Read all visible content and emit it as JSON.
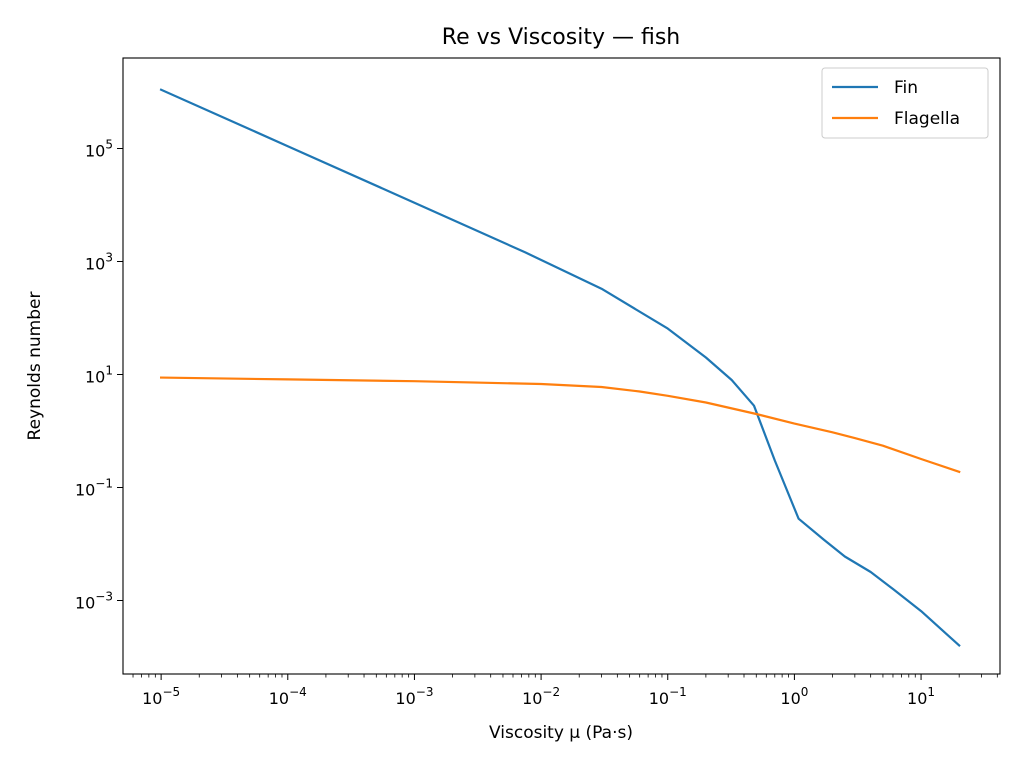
{
  "chart_data": {
    "type": "line",
    "title": "Re vs Viscosity — fish",
    "xlabel": "Viscosity μ (Pa·s)",
    "ylabel": "Reynolds number",
    "xscale": "log",
    "yscale": "log",
    "xlim": [
      5e-06,
      42
    ],
    "ylim": [
      5e-05,
      4000000
    ],
    "x_ticks": [
      {
        "value": 1e-05,
        "base": "10",
        "exp": "−5"
      },
      {
        "value": 0.0001,
        "base": "10",
        "exp": "−4"
      },
      {
        "value": 0.001,
        "base": "10",
        "exp": "−3"
      },
      {
        "value": 0.01,
        "base": "10",
        "exp": "−2"
      },
      {
        "value": 0.1,
        "base": "10",
        "exp": "−1"
      },
      {
        "value": 1,
        "base": "10",
        "exp": "0"
      },
      {
        "value": 10,
        "base": "10",
        "exp": "1"
      }
    ],
    "y_ticks": [
      {
        "value": 0.001,
        "base": "10",
        "exp": "−3"
      },
      {
        "value": 0.1,
        "base": "10",
        "exp": "−1"
      },
      {
        "value": 10,
        "base": "10",
        "exp": "1"
      },
      {
        "value": 1000,
        "base": "10",
        "exp": "3"
      },
      {
        "value": 100000,
        "base": "10",
        "exp": "5"
      }
    ],
    "legend_position": "top-right",
    "grid": false,
    "series": [
      {
        "name": "Fin",
        "color": "#1f77b4",
        "points": [
          [
            1e-05,
            1100000
          ],
          [
            0.0001,
            110000
          ],
          [
            0.001,
            11000
          ],
          [
            0.0075,
            1450
          ],
          [
            0.03,
            330
          ],
          [
            0.1,
            65
          ],
          [
            0.2,
            20
          ],
          [
            0.32,
            8
          ],
          [
            0.48,
            2.8
          ],
          [
            0.7,
            0.3
          ],
          [
            1.08,
            0.028
          ],
          [
            1.7,
            0.012
          ],
          [
            2.5,
            0.006
          ],
          [
            4,
            0.0032
          ],
          [
            6,
            0.0016
          ],
          [
            10,
            0.00065
          ],
          [
            20,
            0.00016
          ]
        ]
      },
      {
        "name": "Flagella",
        "color": "#ff7f0e",
        "points": [
          [
            1e-05,
            8.8
          ],
          [
            0.0001,
            8.2
          ],
          [
            0.001,
            7.6
          ],
          [
            0.01,
            6.8
          ],
          [
            0.03,
            6.0
          ],
          [
            0.06,
            5.0
          ],
          [
            0.1,
            4.2
          ],
          [
            0.2,
            3.2
          ],
          [
            0.5,
            2.0
          ],
          [
            1,
            1.35
          ],
          [
            2,
            0.95
          ],
          [
            3,
            0.75
          ],
          [
            5,
            0.55
          ],
          [
            10,
            0.32
          ],
          [
            20,
            0.19
          ]
        ]
      }
    ]
  }
}
